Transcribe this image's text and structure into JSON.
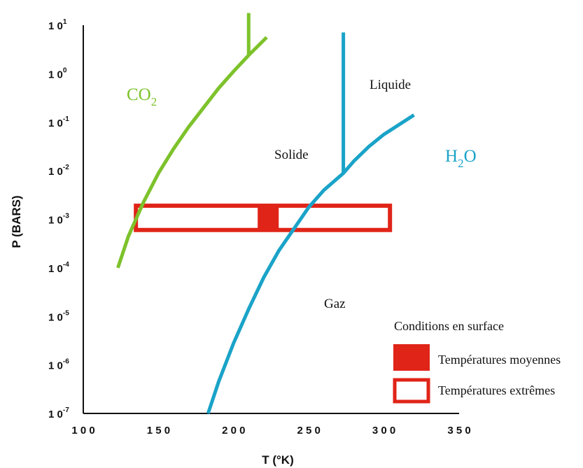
{
  "chart_data": {
    "type": "line",
    "xlabel": "T   (°K)",
    "ylabel": "P   (BARS)",
    "xlim": [
      100,
      350
    ],
    "ylim_log10": [
      -7,
      1
    ],
    "y_log_scale": true,
    "x_ticks": [
      "1 0 0",
      "1 5 0",
      "2 0 0",
      "2 5 0",
      "3 0 0",
      "3 5 0"
    ],
    "x_tick_values": [
      100,
      150,
      200,
      250,
      300,
      350
    ],
    "y_ticks": [
      {
        "base": "1 0",
        "exp": "-7",
        "log10": -7
      },
      {
        "base": "1 0",
        "exp": "-6",
        "log10": -6
      },
      {
        "base": "1 0",
        "exp": "-5",
        "log10": -5
      },
      {
        "base": "1 0",
        "exp": "-4",
        "log10": -4
      },
      {
        "base": "1 0",
        "exp": "-3",
        "log10": -3
      },
      {
        "base": "1 0",
        "exp": "-2",
        "log10": -2
      },
      {
        "base": "1 0",
        "exp": "-1",
        "log10": -1
      },
      {
        "base": "1 0",
        "exp": "0",
        "log10": 0
      },
      {
        "base": "1 0",
        "exp": "1",
        "log10": 1
      }
    ],
    "series": [
      {
        "name_main": "CO",
        "name_sub": "2",
        "color": "#7dc22b",
        "curve": [
          [
            123,
            -4.0
          ],
          [
            130,
            -3.35
          ],
          [
            140,
            -2.65
          ],
          [
            150,
            -2.05
          ],
          [
            160,
            -1.55
          ],
          [
            170,
            -1.1
          ],
          [
            180,
            -0.7
          ],
          [
            190,
            -0.3
          ],
          [
            200,
            0.05
          ],
          [
            210,
            0.38
          ],
          [
            222,
            0.75
          ]
        ],
        "vertical": [
          [
            210,
            0.38
          ],
          [
            210,
            1.25
          ]
        ]
      },
      {
        "name_main": "H",
        "name_sub": "2",
        "name_tail": "O",
        "color": "#1aa3c8",
        "curve": [
          [
            183,
            -7.0
          ],
          [
            190,
            -6.35
          ],
          [
            200,
            -5.55
          ],
          [
            210,
            -4.85
          ],
          [
            220,
            -4.2
          ],
          [
            230,
            -3.65
          ],
          [
            240,
            -3.2
          ],
          [
            250,
            -2.75
          ],
          [
            260,
            -2.4
          ],
          [
            273,
            -2.05
          ],
          [
            280,
            -1.8
          ],
          [
            290,
            -1.5
          ],
          [
            300,
            -1.25
          ],
          [
            310,
            -1.05
          ],
          [
            320,
            -0.85
          ]
        ],
        "vertical": [
          [
            273,
            -2.05
          ],
          [
            273,
            0.85
          ]
        ]
      }
    ],
    "surface_conditions": {
      "extreme_range": {
        "t_min": 135,
        "t_max": 304,
        "log10_p_min": -3.22,
        "log10_p_max": -2.72
      },
      "mean_range": {
        "t_min": 216,
        "t_max": 230,
        "log10_p_min": -3.22,
        "log10_p_max": -2.72
      },
      "color": "#e02418"
    },
    "region_labels": [
      {
        "text": "Liquide",
        "t": 290,
        "log10_p": 0.0
      },
      {
        "text": "Solide",
        "t": 240,
        "log10_p": -1.65
      },
      {
        "text": "Gaz",
        "t": 263,
        "log10_p": -4.75
      }
    ],
    "legend": {
      "title": "Conditions en surface",
      "items": [
        {
          "label": "Températures moyennes",
          "style": "filled"
        },
        {
          "label": "Températures extrêmes",
          "style": "outline"
        }
      ],
      "placement": "bottom-right"
    }
  }
}
